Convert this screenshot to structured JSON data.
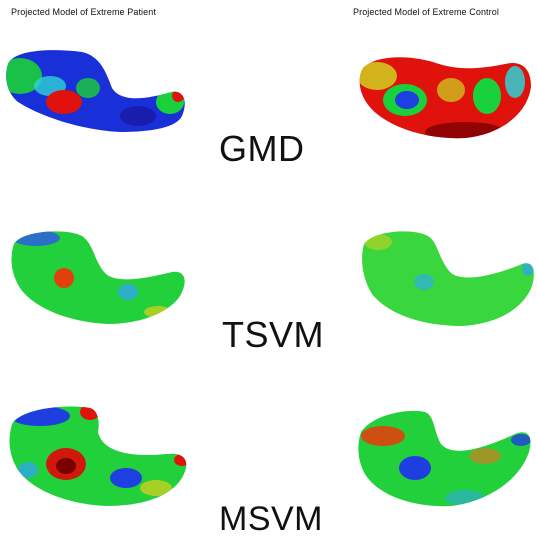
{
  "columns": {
    "left_title": "Projected Model of Extreme Patient",
    "right_title": "Projected Model of Extreme Control"
  },
  "rows": [
    {
      "method": "GMD"
    },
    {
      "method": "TSVM"
    },
    {
      "method": "MSVM"
    }
  ],
  "colors": {
    "low": "#0a1fd0",
    "mid": "#19d13a",
    "high": "#e0120c",
    "peak": "#7a0000"
  }
}
